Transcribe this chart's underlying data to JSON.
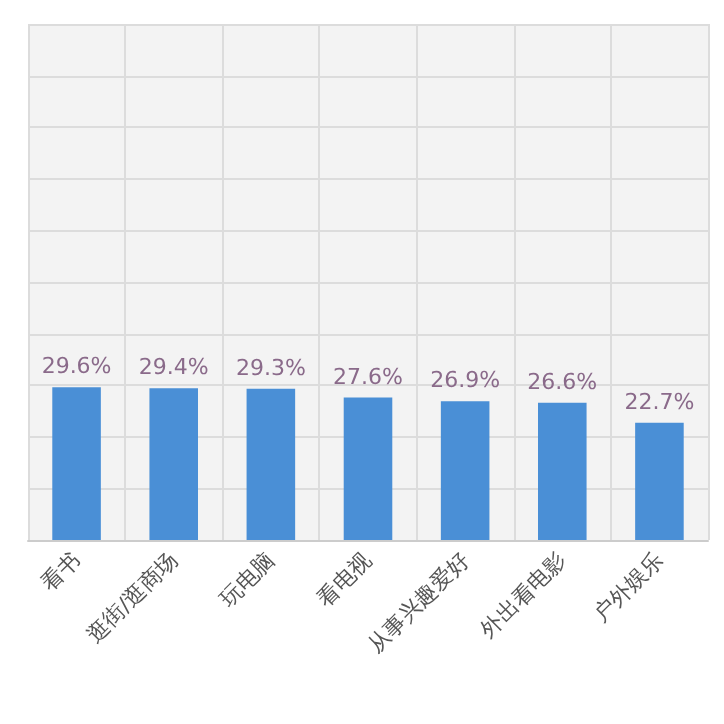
{
  "chart_data": {
    "type": "bar",
    "categories": [
      "看书",
      "逛街/逛商场",
      "玩电脑",
      "看电视",
      "从事兴趣爱好",
      "外出看电影",
      "户外娱乐"
    ],
    "values": [
      29.6,
      29.4,
      29.3,
      27.6,
      26.9,
      26.6,
      22.7
    ],
    "value_labels": [
      "29.6%",
      "29.4%",
      "29.3%",
      "27.6%",
      "26.9%",
      "26.6%",
      "22.7%"
    ],
    "color": "#4a8fd6",
    "ylim": [
      0,
      100
    ],
    "yticks": [
      {
        "value": 0,
        "label": null
      },
      {
        "value": 10,
        "label": null
      },
      {
        "value": 20,
        "label": null
      },
      {
        "value": 30,
        "label": null
      },
      {
        "value": 40,
        "label": null
      },
      {
        "value": 50,
        "label": null
      },
      {
        "value": 60,
        "label": null
      },
      {
        "value": 70,
        "label": null
      },
      {
        "value": 80,
        "label": null
      },
      {
        "value": 90,
        "label": null
      },
      {
        "value": 100,
        "label": null
      }
    ],
    "grid": true,
    "tick_labels": "x"
  }
}
